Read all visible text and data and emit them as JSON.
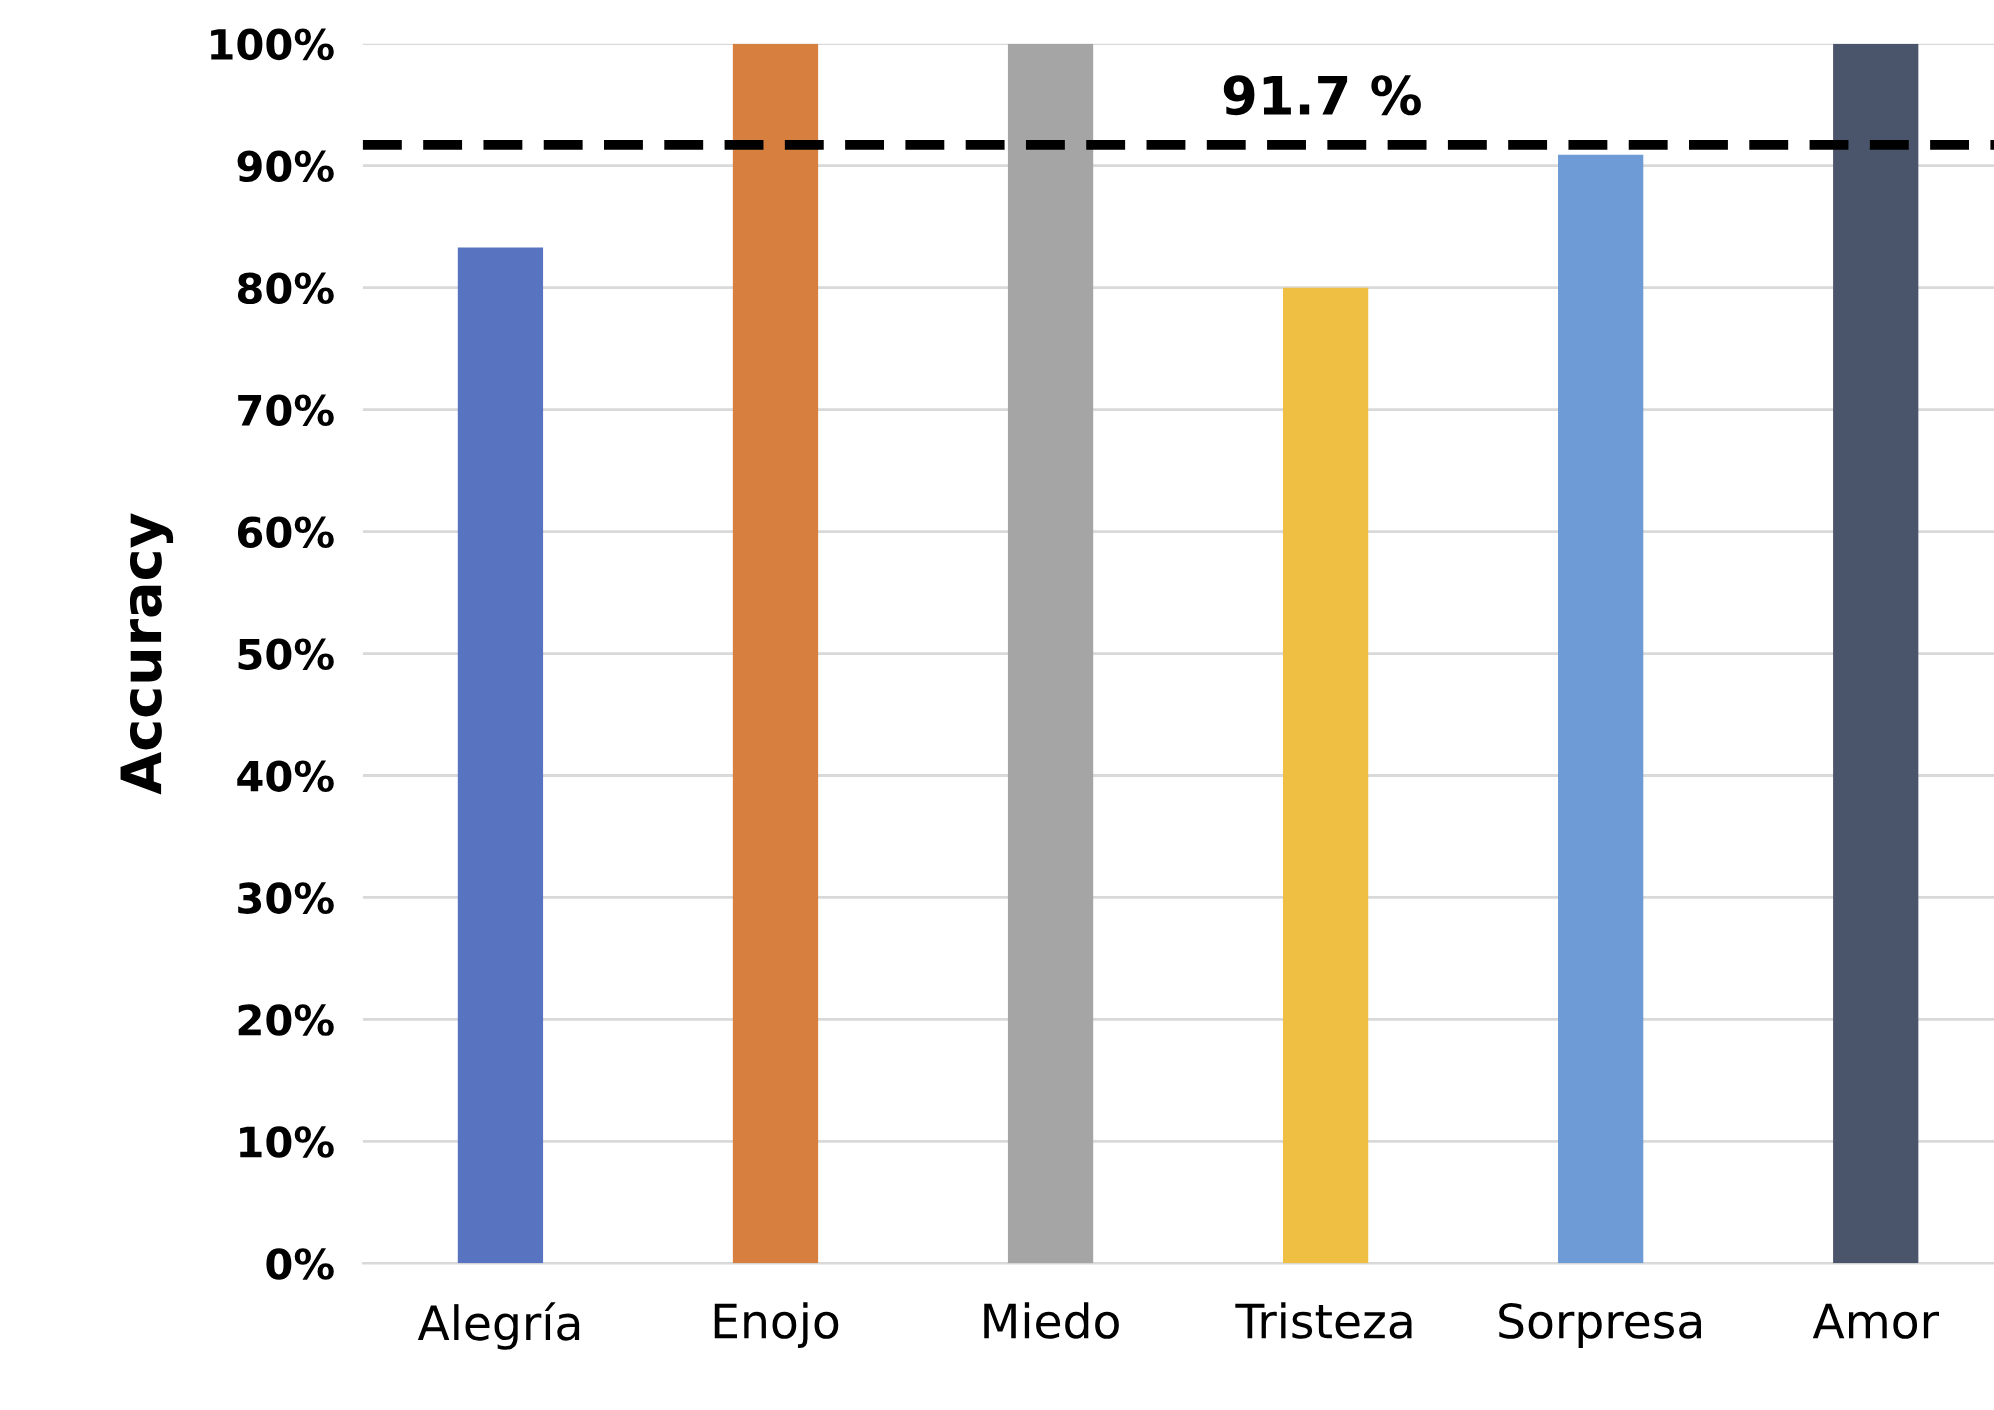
{
  "chart_data": {
    "type": "bar",
    "ylabel": "Accuracy",
    "categories": [
      "Alegría",
      "Enojo",
      "Miedo",
      "Tristeza",
      "Sorpresa",
      "Amor"
    ],
    "values": [
      83.3,
      100,
      100,
      80,
      90.9,
      100
    ],
    "colors": [
      "#5874c1",
      "#d77f3f",
      "#a5a5a5",
      "#eebf43",
      "#6e9bd6",
      "#4a546a"
    ],
    "ylim": [
      0,
      100
    ],
    "yticks": [
      {
        "value": 0,
        "label": "0%"
      },
      {
        "value": 10,
        "label": "10%"
      },
      {
        "value": 20,
        "label": "20%"
      },
      {
        "value": 30,
        "label": "30%"
      },
      {
        "value": 40,
        "label": "40%"
      },
      {
        "value": 50,
        "label": "50%"
      },
      {
        "value": 60,
        "label": "60%"
      },
      {
        "value": 70,
        "label": "70%"
      },
      {
        "value": 80,
        "label": "80%"
      },
      {
        "value": 90,
        "label": "90%"
      },
      {
        "value": 100,
        "label": "100%"
      }
    ],
    "grid": "y",
    "ref_lines": [
      {
        "axis": "y",
        "value": 91.7,
        "label": "91.7 %",
        "color": "#000000",
        "line_style": "dashed"
      }
    ]
  }
}
